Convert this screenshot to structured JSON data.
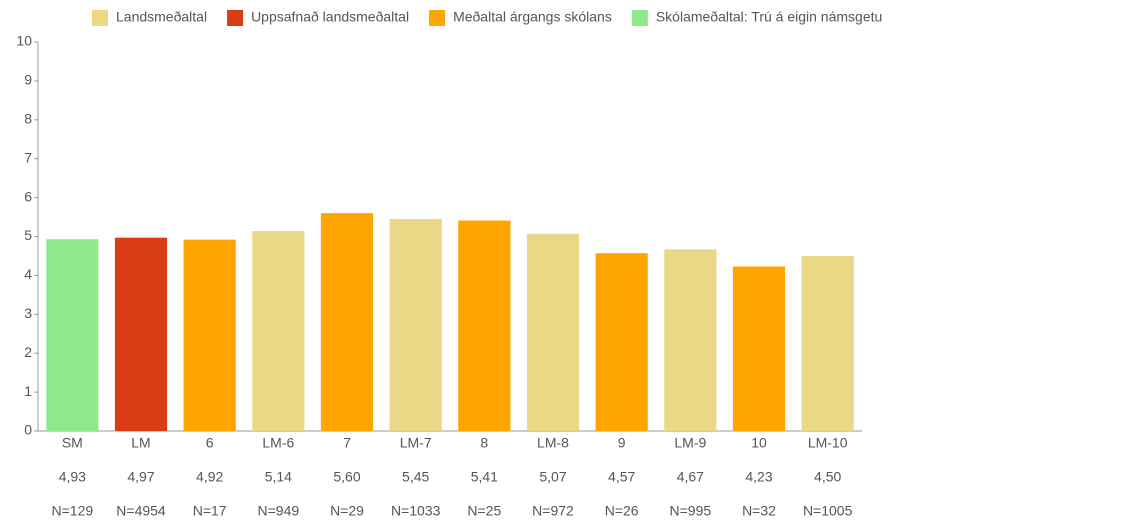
{
  "chart_data": {
    "type": "bar",
    "legend": [
      {
        "name": "Landsmeðaltal",
        "color": "#e9d886"
      },
      {
        "name": "Uppsafnað landsmeðaltal",
        "color": "#d93d16"
      },
      {
        "name": "Meðaltal árgangs skólans",
        "color": "#ffa500"
      },
      {
        "name": "Skólameðaltal: Trú á eigin námsgetu",
        "color": "#90e88c"
      }
    ],
    "categories": [
      "SM",
      "LM",
      "6",
      "LM-6",
      "7",
      "LM-7",
      "8",
      "LM-8",
      "9",
      "LM-9",
      "10",
      "LM-10"
    ],
    "values": [
      4.93,
      4.97,
      4.92,
      5.14,
      5.6,
      5.45,
      5.41,
      5.07,
      4.57,
      4.67,
      4.23,
      4.5
    ],
    "value_labels": [
      "4,93",
      "4,97",
      "4,92",
      "5,14",
      "5,60",
      "5,45",
      "5,41",
      "5,07",
      "4,57",
      "4,67",
      "4,23",
      "4,50"
    ],
    "n_labels": [
      "N=129",
      "N=4954",
      "N=17",
      "N=949",
      "N=29",
      "N=1033",
      "N=25",
      "N=972",
      "N=26",
      "N=995",
      "N=32",
      "N=1005"
    ],
    "bar_colors": [
      "#90e88c",
      "#d93d16",
      "#ffa500",
      "#e9d886",
      "#ffa500",
      "#e9d886",
      "#ffa500",
      "#e9d886",
      "#ffa500",
      "#e9d886",
      "#ffa500",
      "#e9d886"
    ],
    "ylim": [
      0,
      10
    ],
    "yticks": [
      0,
      1,
      2,
      3,
      4,
      5,
      6,
      7,
      8,
      9,
      10
    ],
    "grid": false
  }
}
